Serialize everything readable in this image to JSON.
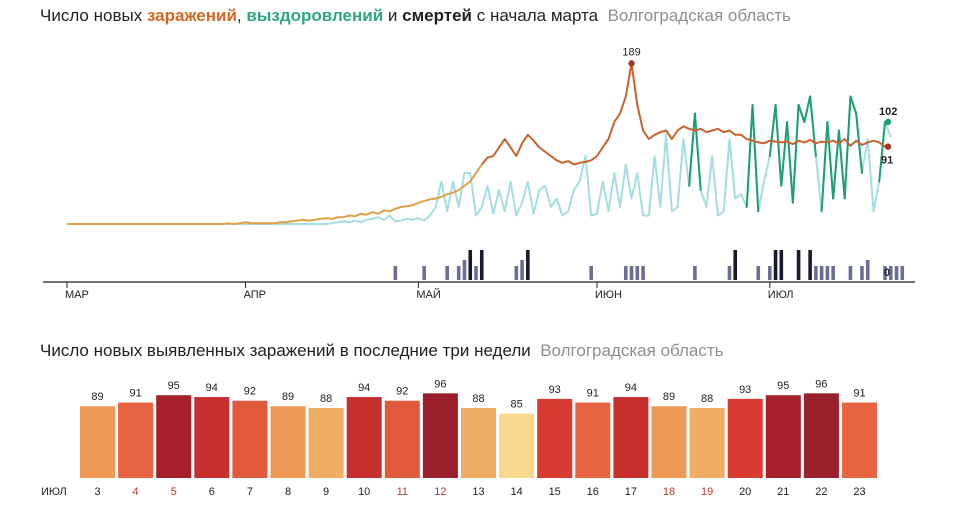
{
  "chart_data": [
    {
      "type": "line",
      "title_parts": {
        "prefix": "Число новых ",
        "infections": "заражений",
        "sep1": ", ",
        "recoveries": "выздоровлений",
        "sep2": " и ",
        "deaths": "смертей",
        "suffix": " с начала марта",
        "region": "Волгоградская область"
      },
      "x_tick_labels": [
        "МАР",
        "АПР",
        "МАЙ",
        "ИЮН",
        "ИЮЛ"
      ],
      "annotations": {
        "peak_infections": "189",
        "last_recoveries": "102",
        "last_infections": "91",
        "deaths_zero": "0"
      },
      "y_range": [
        0,
        200
      ],
      "grid": false,
      "colors": {
        "infections": "#c9622f",
        "infections_early": "#e0a048",
        "recoveries_high": "#1e9e72",
        "recoveries_low": "#a6dde0",
        "deaths_bar": "#1a1a2e",
        "deaths_bar_small": "#6c6f95",
        "marker_red": "#a33428",
        "marker_green": "#1e9e72"
      },
      "series": [
        {
          "key": "infections",
          "values": [
            0,
            0,
            0,
            0,
            0,
            0,
            0,
            0,
            0,
            0,
            0,
            0,
            0,
            0,
            0,
            0,
            0,
            0,
            0,
            0,
            0,
            0,
            0,
            0,
            0,
            0,
            0,
            0,
            1,
            0,
            1,
            2,
            1,
            1,
            1,
            1,
            1,
            2,
            2,
            3,
            4,
            5,
            4,
            5,
            6,
            7,
            6,
            8,
            8,
            10,
            9,
            12,
            11,
            14,
            12,
            16,
            15,
            18,
            20,
            21,
            22,
            25,
            27,
            29,
            30,
            32,
            35,
            37,
            40,
            45,
            50,
            60,
            70,
            78,
            80,
            90,
            100,
            90,
            80,
            95,
            105,
            98,
            90,
            85,
            80,
            75,
            72,
            74,
            70,
            72,
            73,
            75,
            80,
            90,
            100,
            120,
            130,
            150,
            189,
            140,
            110,
            100,
            105,
            108,
            110,
            100,
            110,
            115,
            112,
            110,
            112,
            108,
            110,
            112,
            108,
            110,
            105,
            105,
            100,
            98,
            96,
            95,
            98,
            97,
            96,
            97,
            94,
            98,
            96,
            99,
            95,
            97,
            96,
            98,
            95,
            100,
            92,
            98,
            93,
            96,
            98,
            96,
            91
          ]
        },
        {
          "key": "recoveries",
          "values": [
            0,
            0,
            0,
            0,
            0,
            0,
            0,
            0,
            0,
            0,
            0,
            0,
            0,
            0,
            0,
            0,
            0,
            0,
            0,
            0,
            0,
            0,
            0,
            0,
            0,
            0,
            0,
            0,
            0,
            0,
            0,
            0,
            0,
            0,
            0,
            0,
            0,
            0,
            0,
            0,
            0,
            0,
            0,
            0,
            0,
            0,
            1,
            2,
            3,
            2,
            4,
            2,
            5,
            6,
            8,
            5,
            10,
            3,
            4,
            6,
            5,
            7,
            4,
            10,
            20,
            50,
            15,
            50,
            20,
            60,
            60,
            10,
            20,
            45,
            12,
            40,
            15,
            50,
            10,
            25,
            50,
            12,
            40,
            45,
            20,
            30,
            10,
            15,
            40,
            50,
            80,
            10,
            12,
            50,
            15,
            60,
            20,
            70,
            30,
            60,
            10,
            10,
            80,
            20,
            105,
            15,
            20,
            100,
            45,
            130,
            40,
            20,
            80,
            10,
            15,
            100,
            30,
            35,
            20,
            140,
            15,
            50,
            80,
            140,
            45,
            120,
            25,
            140,
            120,
            150,
            80,
            15,
            120,
            30,
            110,
            30,
            150,
            130,
            60,
            100,
            15,
            50,
            120,
            102
          ]
        },
        {
          "key": "deaths",
          "values": [
            0,
            0,
            0,
            0,
            0,
            0,
            0,
            0,
            0,
            0,
            0,
            0,
            0,
            0,
            0,
            0,
            0,
            0,
            0,
            0,
            0,
            0,
            0,
            0,
            0,
            0,
            0,
            0,
            0,
            0,
            0,
            0,
            0,
            0,
            0,
            0,
            0,
            0,
            0,
            0,
            0,
            0,
            0,
            0,
            0,
            0,
            0,
            0,
            0,
            0,
            0,
            0,
            0,
            0,
            0,
            0,
            0,
            1,
            0,
            0,
            0,
            0,
            1,
            0,
            0,
            0,
            1,
            0,
            1,
            2,
            3,
            1,
            3,
            0,
            0,
            0,
            0,
            0,
            1,
            2,
            3,
            0,
            0,
            0,
            0,
            0,
            0,
            0,
            0,
            0,
            0,
            1,
            0,
            0,
            0,
            0,
            0,
            1,
            1,
            1,
            1,
            0,
            0,
            0,
            0,
            0,
            0,
            0,
            0,
            1,
            0,
            0,
            0,
            0,
            0,
            1,
            3,
            0,
            0,
            0,
            1,
            0,
            1,
            3,
            3,
            0,
            0,
            3,
            0,
            3,
            1,
            1,
            1,
            1,
            0,
            0,
            1,
            0,
            1,
            2,
            0,
            0,
            1,
            1,
            1,
            1,
            0
          ]
        }
      ]
    },
    {
      "type": "bar",
      "title_parts": {
        "main": "Число новых выявленных заражений в последние три недели",
        "region": "Волгоградская область"
      },
      "month_label": "ИЮЛ",
      "categories": [
        "3",
        "4",
        "5",
        "6",
        "7",
        "8",
        "9",
        "10",
        "11",
        "12",
        "13",
        "14",
        "15",
        "16",
        "17",
        "18",
        "19",
        "20",
        "21",
        "22",
        "23"
      ],
      "weekend_categories": [
        "4",
        "5",
        "11",
        "12",
        "18",
        "19"
      ],
      "values": [
        89,
        91,
        95,
        94,
        92,
        89,
        88,
        94,
        92,
        96,
        88,
        85,
        93,
        91,
        94,
        89,
        88,
        93,
        95,
        96,
        91
      ],
      "y_range": [
        0,
        100
      ],
      "color_scale": {
        "85": "#f7d88c",
        "88": "#f0ad63",
        "89": "#ee9a56",
        "91": "#e8633f",
        "92": "#e25a3e",
        "93": "#d93a32",
        "94": "#c7302f",
        "95": "#a8202c",
        "96": "#9a1f2a"
      },
      "weekend_label_color": "#c0392b"
    }
  ]
}
